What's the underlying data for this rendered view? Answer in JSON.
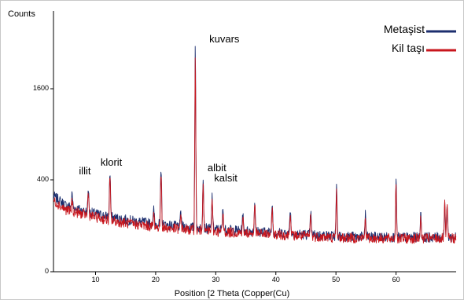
{
  "chart_data": {
    "type": "line",
    "title": "",
    "ylabel": "Counts",
    "xlabel": "Position [2 Theta (Copper(Cu)",
    "xlim": [
      3,
      70
    ],
    "ylim": [
      0,
      2100
    ],
    "x_ticks": [
      10,
      20,
      30,
      40,
      50,
      60
    ],
    "x_tick_labels": [
      "10",
      "20",
      "30",
      "40",
      "50",
      "60"
    ],
    "y_ticks": [
      0,
      400,
      1600
    ],
    "y_tick_labels": [
      "0",
      "400",
      "1600"
    ],
    "legend_position": "top-right",
    "series": [
      {
        "name": "Metaşist",
        "color": "#1c2e6e",
        "background": [
          [
            3,
            330
          ],
          [
            5,
            290
          ],
          [
            8,
            265
          ],
          [
            12,
            240
          ],
          [
            16,
            222
          ],
          [
            20,
            208
          ],
          [
            25,
            195
          ],
          [
            30,
            185
          ],
          [
            35,
            178
          ],
          [
            40,
            170
          ],
          [
            45,
            162
          ],
          [
            50,
            155
          ],
          [
            55,
            152
          ],
          [
            60,
            150
          ],
          [
            65,
            150
          ],
          [
            70,
            150
          ]
        ],
        "peaks": [
          [
            6.1,
            340
          ],
          [
            8.8,
            365
          ],
          [
            12.4,
            470
          ],
          [
            19.7,
            270
          ],
          [
            20.9,
            490
          ],
          [
            24.2,
            260
          ],
          [
            26.6,
            1960
          ],
          [
            27.9,
            420
          ],
          [
            29.4,
            330
          ],
          [
            31.2,
            270
          ],
          [
            34.5,
            250
          ],
          [
            36.5,
            310
          ],
          [
            39.4,
            300
          ],
          [
            42.4,
            280
          ],
          [
            45.8,
            260
          ],
          [
            50.1,
            370
          ],
          [
            54.9,
            250
          ],
          [
            60.0,
            400
          ],
          [
            64.1,
            250
          ],
          [
            68.1,
            300
          ],
          [
            68.5,
            290
          ]
        ]
      },
      {
        "name": "Kil taşı",
        "color": "#c8161d",
        "background": [
          [
            3,
            310
          ],
          [
            5,
            270
          ],
          [
            8,
            250
          ],
          [
            12,
            225
          ],
          [
            16,
            208
          ],
          [
            20,
            195
          ],
          [
            25,
            183
          ],
          [
            30,
            175
          ],
          [
            35,
            168
          ],
          [
            40,
            162
          ],
          [
            45,
            155
          ],
          [
            50,
            148
          ],
          [
            55,
            146
          ],
          [
            60,
            144
          ],
          [
            65,
            145
          ],
          [
            70,
            145
          ]
        ],
        "peaks": [
          [
            6.1,
            310
          ],
          [
            8.8,
            350
          ],
          [
            12.4,
            420
          ],
          [
            19.7,
            250
          ],
          [
            20.9,
            460
          ],
          [
            24.2,
            245
          ],
          [
            26.6,
            1850
          ],
          [
            27.9,
            400
          ],
          [
            29.4,
            300
          ],
          [
            31.2,
            255
          ],
          [
            34.5,
            235
          ],
          [
            36.5,
            290
          ],
          [
            39.4,
            280
          ],
          [
            42.4,
            265
          ],
          [
            45.8,
            245
          ],
          [
            50.1,
            350
          ],
          [
            54.9,
            235
          ],
          [
            60.0,
            380
          ],
          [
            64.1,
            240
          ],
          [
            68.1,
            290
          ],
          [
            68.5,
            280
          ]
        ]
      }
    ],
    "annotations": [
      {
        "text": "illit",
        "x": 8.8,
        "y": 430
      },
      {
        "text": "klorit",
        "x": 12.4,
        "y": 540
      },
      {
        "text": "kuvars",
        "x": 30.5,
        "y": 1880
      },
      {
        "text": "albit",
        "x": 30.2,
        "y": 470
      },
      {
        "text": "kalsit",
        "x": 31.3,
        "y": 380
      }
    ]
  }
}
